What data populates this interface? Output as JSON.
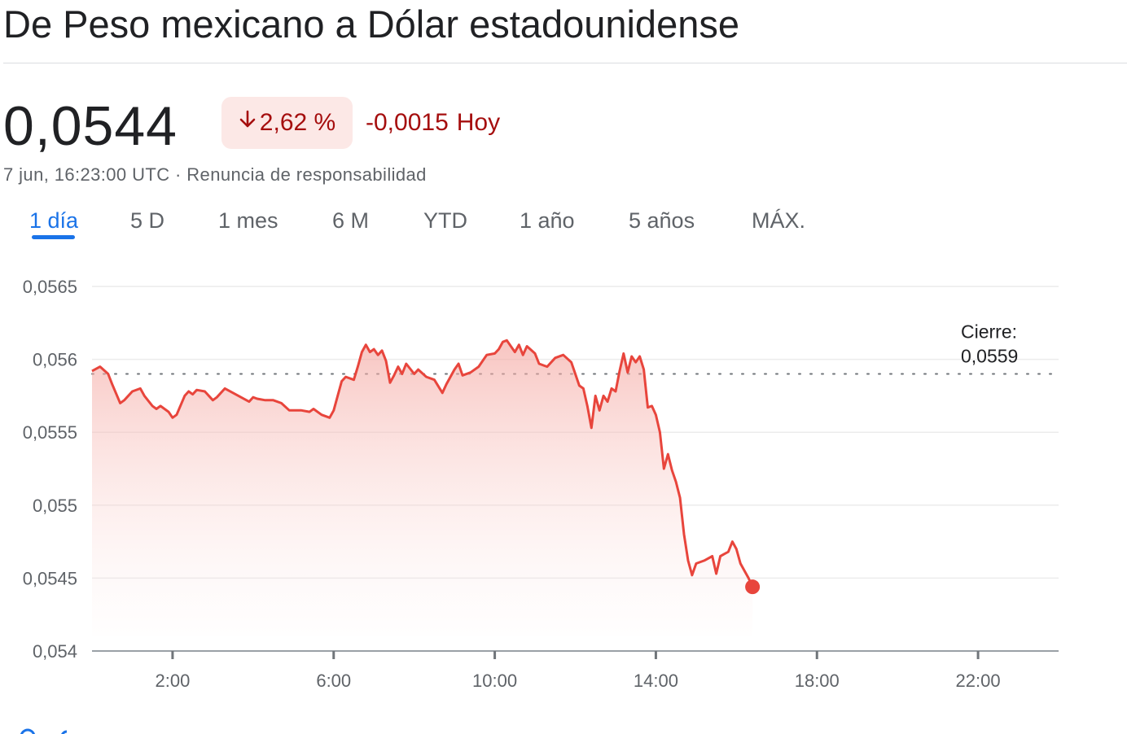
{
  "header": {
    "title": "De Peso mexicano a Dólar estadounidense"
  },
  "quote": {
    "price": "0,0544",
    "change_pct": "2,62 %",
    "change_abs": "-0,0015",
    "change_period": "Hoy",
    "timestamp": "7 jun, 16:23:00 UTC",
    "separator": " · ",
    "disclaimer": "Renuncia de responsabilidad"
  },
  "colors": {
    "negative": "#a50e0e",
    "negative_bg": "#fce8e6",
    "line": "#e8453c",
    "accent": "#1a73e8"
  },
  "tabs": [
    {
      "label": "1 día",
      "active": true
    },
    {
      "label": "5 D"
    },
    {
      "label": "1 mes"
    },
    {
      "label": "6 M"
    },
    {
      "label": "YTD"
    },
    {
      "label": "1 año"
    },
    {
      "label": "5 años"
    },
    {
      "label": "MÁX."
    }
  ],
  "chart_data": {
    "type": "area",
    "x_unit": "hour_of_day",
    "y_tick_labels": [
      "0,054",
      "0,0545",
      "0,055",
      "0,0555",
      "0,056",
      "0,0565"
    ],
    "y_ticks": [
      0.054,
      0.0545,
      0.055,
      0.0555,
      0.056,
      0.0565
    ],
    "x_tick_labels": [
      "2:00",
      "6:00",
      "10:00",
      "14:00",
      "18:00",
      "22:00"
    ],
    "x_ticks": [
      2,
      6,
      10,
      14,
      18,
      22
    ],
    "xlim": [
      0,
      24
    ],
    "ylim": [
      0.054,
      0.0565
    ],
    "grid": true,
    "reference_line": {
      "label": "Cierre:",
      "value_label": "0,0559",
      "value": 0.0559
    },
    "x": [
      0.0,
      0.2,
      0.4,
      0.5,
      0.7,
      0.8,
      1.0,
      1.2,
      1.3,
      1.5,
      1.6,
      1.7,
      1.9,
      2.0,
      2.1,
      2.3,
      2.4,
      2.5,
      2.6,
      2.8,
      3.0,
      3.1,
      3.3,
      3.5,
      3.7,
      3.9,
      4.0,
      4.1,
      4.3,
      4.5,
      4.7,
      4.9,
      5.1,
      5.2,
      5.4,
      5.5,
      5.7,
      5.9,
      6.0,
      6.1,
      6.2,
      6.3,
      6.5,
      6.6,
      6.7,
      6.8,
      6.9,
      7.0,
      7.1,
      7.2,
      7.3,
      7.4,
      7.5,
      7.6,
      7.7,
      7.8,
      8.0,
      8.1,
      8.3,
      8.5,
      8.7,
      8.8,
      9.0,
      9.1,
      9.2,
      9.4,
      9.6,
      9.8,
      10.0,
      10.1,
      10.2,
      10.3,
      10.5,
      10.6,
      10.7,
      10.8,
      11.0,
      11.1,
      11.3,
      11.5,
      11.7,
      11.9,
      12.0,
      12.1,
      12.2,
      12.3,
      12.4,
      12.5,
      12.6,
      12.7,
      12.8,
      12.9,
      13.0,
      13.1,
      13.2,
      13.3,
      13.4,
      13.5,
      13.6,
      13.7,
      13.8,
      13.9,
      14.0,
      14.1,
      14.2,
      14.3,
      14.4,
      14.5,
      14.6,
      14.7,
      14.8,
      14.9,
      15.0,
      15.2,
      15.4,
      15.5,
      15.6,
      15.8,
      15.9,
      16.0,
      16.1,
      16.2,
      16.3,
      16.4
    ],
    "values": [
      0.05592,
      0.05595,
      0.0559,
      0.05583,
      0.0557,
      0.05572,
      0.05578,
      0.0558,
      0.05575,
      0.05568,
      0.05566,
      0.05568,
      0.05564,
      0.0556,
      0.05562,
      0.05575,
      0.05578,
      0.05576,
      0.05579,
      0.05578,
      0.05572,
      0.05574,
      0.0558,
      0.05577,
      0.05574,
      0.05571,
      0.05574,
      0.05573,
      0.05572,
      0.05572,
      0.0557,
      0.05565,
      0.05565,
      0.05565,
      0.05564,
      0.05566,
      0.05562,
      0.0556,
      0.05565,
      0.05575,
      0.05585,
      0.05588,
      0.05586,
      0.05595,
      0.05605,
      0.0561,
      0.05605,
      0.05607,
      0.05603,
      0.05606,
      0.05599,
      0.05584,
      0.05589,
      0.05595,
      0.0559,
      0.05597,
      0.0559,
      0.05593,
      0.05588,
      0.05586,
      0.05577,
      0.05583,
      0.05593,
      0.05597,
      0.05589,
      0.05591,
      0.05595,
      0.05603,
      0.05604,
      0.05607,
      0.05612,
      0.05613,
      0.05605,
      0.0561,
      0.05603,
      0.05609,
      0.05604,
      0.05597,
      0.05595,
      0.05601,
      0.05603,
      0.05598,
      0.0559,
      0.05582,
      0.0558,
      0.05568,
      0.05553,
      0.05575,
      0.05565,
      0.05575,
      0.05571,
      0.0558,
      0.05578,
      0.05592,
      0.05604,
      0.05591,
      0.05602,
      0.05598,
      0.05602,
      0.05593,
      0.05567,
      0.05568,
      0.05562,
      0.0555,
      0.05525,
      0.05535,
      0.05524,
      0.05516,
      0.05505,
      0.0548,
      0.05462,
      0.05452,
      0.0546,
      0.05462,
      0.05465,
      0.05453,
      0.05465,
      0.05468,
      0.05475,
      0.0547,
      0.0546,
      0.05455,
      0.0545,
      0.05444
    ]
  }
}
